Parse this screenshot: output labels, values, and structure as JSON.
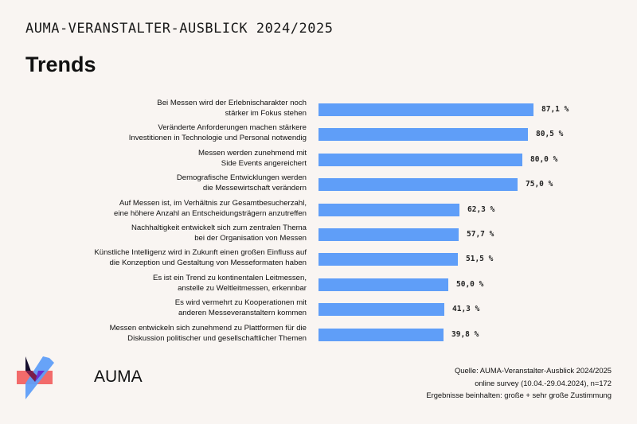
{
  "header": {
    "supertitle": "AUMA-VERANSTALTER-AUSBLICK 2024/2025",
    "title": "Trends"
  },
  "chart_data": {
    "type": "bar",
    "orientation": "horizontal",
    "unit": "%",
    "categories": [
      [
        "Bei Messen wird der Erlebnischarakter noch",
        "stärker im Fokus stehen"
      ],
      [
        "Veränderte Anforderungen machen stärkere",
        "Investitionen in Technologie und Personal notwendig"
      ],
      [
        "Messen werden zunehmend mit",
        "Side Events angereichert"
      ],
      [
        "Demografische Entwicklungen werden",
        "die Messewirtschaft verändern"
      ],
      [
        "Auf Messen ist, im Verhältnis zur Gesamtbesucherzahl,",
        "eine höhere Anzahl an Entscheidungsträgern anzutreffen"
      ],
      [
        "Nachhaltigkeit entwickelt sich zum zentralen Thema",
        "bei der Organisation von Messen"
      ],
      [
        "Künstliche Intelligenz wird in Zukunft einen großen Einfluss auf",
        "die Konzeption und Gestaltung von Messeformaten haben"
      ],
      [
        "Es ist ein Trend zu kontinentalen Leitmessen,",
        "anstelle zu Weltleitmessen, erkennbar"
      ],
      [
        "Es wird vermehrt zu Kooperationen mit",
        "anderen Messeveranstaltern kommen"
      ],
      [
        "Messen entwickeln sich zunehmend zu Plattformen für die",
        "Diskussion politischer und gesellschaftlicher Themen"
      ]
    ],
    "values": [
      87.1,
      80.5,
      80.0,
      75.0,
      62.3,
      57.7,
      51.5,
      50.0,
      41.3,
      39.8
    ],
    "value_labels": [
      "87,1 %",
      "80,5 %",
      "80,0 %",
      "75,0 %",
      "62,3 %",
      "57,7 %",
      "51,5 %",
      "50,0 %",
      "41,3 %",
      "39,8 %"
    ],
    "bar_color": "#5f9ef8"
  },
  "logo": {
    "text": "AUMA"
  },
  "source": {
    "line1": "Quelle: AUMA-Veranstalter-Ausblick 2024/2025",
    "line2": "online survey (10.04.-29.04.2024), n=172",
    "line3": "Ergebnisse beinhalten: große + sehr große Zustimmung"
  }
}
